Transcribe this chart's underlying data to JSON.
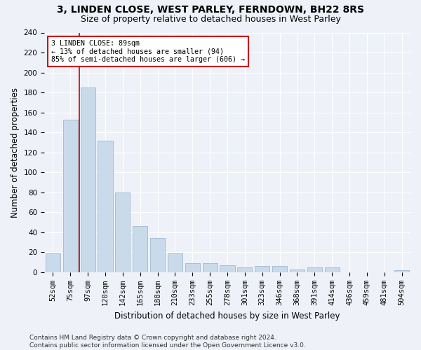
{
  "title1": "3, LINDEN CLOSE, WEST PARLEY, FERNDOWN, BH22 8RS",
  "title2": "Size of property relative to detached houses in West Parley",
  "xlabel": "Distribution of detached houses by size in West Parley",
  "ylabel": "Number of detached properties",
  "categories": [
    "52sqm",
    "75sqm",
    "97sqm",
    "120sqm",
    "142sqm",
    "165sqm",
    "188sqm",
    "210sqm",
    "233sqm",
    "255sqm",
    "278sqm",
    "301sqm",
    "323sqm",
    "346sqm",
    "368sqm",
    "391sqm",
    "414sqm",
    "436sqm",
    "459sqm",
    "481sqm",
    "504sqm"
  ],
  "values": [
    19,
    153,
    185,
    132,
    80,
    46,
    34,
    19,
    9,
    9,
    7,
    5,
    6,
    6,
    3,
    5,
    5,
    0,
    0,
    0,
    2
  ],
  "bar_color": "#c9daea",
  "bar_edge_color": "#a0b8d0",
  "vline_x_index": 1.5,
  "vline_color": "#cc0000",
  "annotation_box_text": "3 LINDEN CLOSE: 89sqm\n← 13% of detached houses are smaller (94)\n85% of semi-detached houses are larger (606) →",
  "annotation_box_color": "#cc0000",
  "annotation_box_fill": "white",
  "ylim": [
    0,
    240
  ],
  "yticks": [
    0,
    20,
    40,
    60,
    80,
    100,
    120,
    140,
    160,
    180,
    200,
    220,
    240
  ],
  "footer_text": "Contains HM Land Registry data © Crown copyright and database right 2024.\nContains public sector information licensed under the Open Government Licence v3.0.",
  "background_color": "#eef2f8",
  "grid_color": "#ffffff",
  "title_fontsize": 10,
  "subtitle_fontsize": 9,
  "axis_label_fontsize": 8.5,
  "tick_fontsize": 7.5,
  "footer_fontsize": 6.5
}
